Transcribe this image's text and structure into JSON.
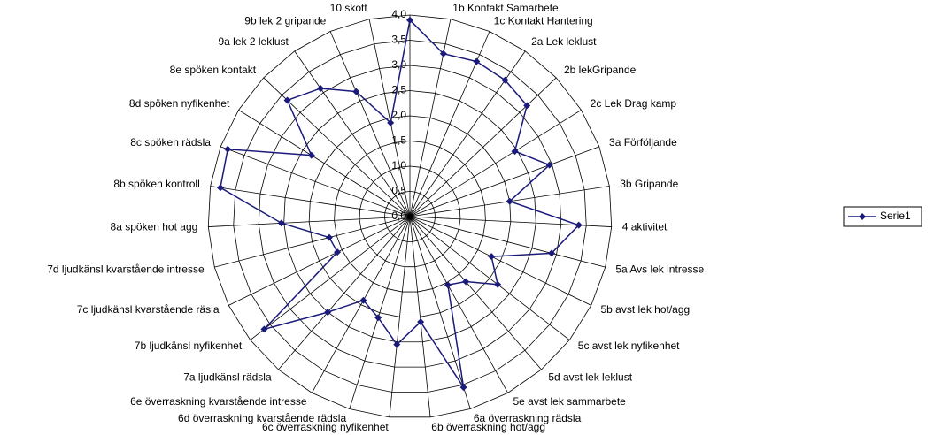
{
  "chart_data": {
    "type": "radar",
    "categories": [
      null,
      "1b Kontakt Samarbete",
      "1c Kontakt Hantering",
      "2a Lek leklust",
      "2b lekGripande",
      "2c Lek Drag kamp",
      "3a Förföljande",
      "3b Gripande",
      "4 aktivitet",
      "5a Avs lek intresse",
      "5b avst lek hot/agg",
      "5c avst lek nyfikenhet",
      "5d avst lek leklust",
      "5e avst lek sammarbete",
      "6a överraskning rädsla",
      "6b överraskning hot/agg",
      "6c överraskning nyfikenhet",
      "6d överraskning kvarstående rädsla",
      "6e överraskning kvarstående intresse",
      "7a ljudkänsl rädsla",
      "7b ljudkänsl nyfikenhet",
      "7c ljudkänsl kvarstående räsla",
      "7d ljudkänsl kvarstående intresse",
      "8a spöken hot agg",
      "8b spöken kontroll",
      "8c spöken rädsla",
      "8d spöken nyfikenhet",
      "8e spöken kontakt",
      "9a lek 2 leklust",
      "9b lek 2 gripande",
      "10 skott"
    ],
    "series": [
      {
        "name": "Serie1",
        "color": "#1a1a7a",
        "values": [
          3.9,
          3.3,
          3.35,
          3.3,
          3.2,
          2.45,
          2.95,
          2.0,
          3.35,
          2.9,
          1.8,
          2.2,
          1.7,
          1.55,
          3.55,
          2.1,
          2.55,
          2.1,
          1.9,
          2.5,
          3.65,
          1.6,
          1.65,
          2.55,
          3.8,
          3.85,
          2.3,
          3.35,
          3.1,
          2.7,
          1.9
        ]
      }
    ],
    "ylim": [
      0,
      4
    ],
    "yticks": [
      {
        "value": 0,
        "label": "0,0"
      },
      {
        "value": 0.5,
        "label": "0,5"
      },
      {
        "value": 1,
        "label": "1,0"
      },
      {
        "value": 1.5,
        "label": "1,5"
      },
      {
        "value": 2,
        "label": "2,0"
      },
      {
        "value": 2.5,
        "label": "2,5"
      },
      {
        "value": 3,
        "label": "3,0"
      },
      {
        "value": 3.5,
        "label": "3,5"
      },
      {
        "value": 4,
        "label": "4,0"
      }
    ],
    "grid": true,
    "legend": "right"
  }
}
